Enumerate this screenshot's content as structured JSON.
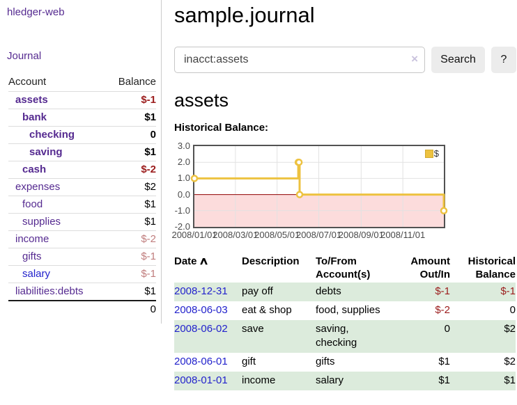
{
  "app": {
    "title": "hledger-web"
  },
  "sidebar": {
    "journal_label": "Journal",
    "accounts_table": {
      "headers": {
        "account": "Account",
        "balance": "Balance"
      },
      "rows": [
        {
          "account": "assets",
          "balance": "$-1",
          "depth": 1,
          "bold": true,
          "balance_class": "neg-strong",
          "visited": true
        },
        {
          "account": "bank",
          "balance": "$1",
          "depth": 2,
          "bold": true,
          "balance_class": "",
          "visited": true
        },
        {
          "account": "checking",
          "balance": "0",
          "depth": 3,
          "bold": true,
          "balance_class": "",
          "visited": true
        },
        {
          "account": "saving",
          "balance": "$1",
          "depth": 3,
          "bold": true,
          "balance_class": "",
          "visited": true
        },
        {
          "account": "cash",
          "balance": "$-2",
          "depth": 2,
          "bold": true,
          "balance_class": "neg-strong",
          "visited": true
        },
        {
          "account": "expenses",
          "balance": "$2",
          "depth": 1,
          "bold": false,
          "balance_class": "",
          "visited": true
        },
        {
          "account": "food",
          "balance": "$1",
          "depth": 2,
          "bold": false,
          "balance_class": "",
          "visited": true
        },
        {
          "account": "supplies",
          "balance": "$1",
          "depth": 2,
          "bold": false,
          "balance_class": "",
          "visited": true
        },
        {
          "account": "income",
          "balance": "$-2",
          "depth": 1,
          "bold": false,
          "balance_class": "neg-soft",
          "visited": true
        },
        {
          "account": "gifts",
          "balance": "$-1",
          "depth": 2,
          "bold": false,
          "balance_class": "neg-soft",
          "visited": true
        },
        {
          "account": "salary",
          "balance": "$-1",
          "depth": 2,
          "bold": false,
          "balance_class": "neg-soft",
          "visited": false
        },
        {
          "account": "liabilities:debts",
          "balance": "$1",
          "depth": 1,
          "bold": false,
          "balance_class": "",
          "visited": true
        }
      ],
      "total": "0"
    }
  },
  "main": {
    "title": "sample.journal",
    "search": {
      "value": "inacct:assets",
      "clear_icon": "×",
      "button_label": "Search",
      "help_label": "?"
    },
    "account_heading": "assets",
    "chart_label": "Historical Balance:",
    "register_table": {
      "headers": [
        {
          "label": "Date",
          "sort": "∧",
          "align": "left"
        },
        {
          "label": "Description",
          "align": "left"
        },
        {
          "label": "To/From Account(s)",
          "align": "left"
        },
        {
          "label": "Amount Out/In",
          "align": "right"
        },
        {
          "label": "Historical Balance",
          "align": "right"
        }
      ],
      "rows": [
        {
          "date": "2008-12-31",
          "description": "pay off",
          "accounts": "debts",
          "amount": "$-1",
          "amount_class": "neg",
          "balance": "$-1",
          "balance_class": "neg"
        },
        {
          "date": "2008-06-03",
          "description": "eat & shop",
          "accounts": "food, supplies",
          "amount": "$-2",
          "amount_class": "neg",
          "balance": "0",
          "balance_class": ""
        },
        {
          "date": "2008-06-02",
          "description": "save",
          "accounts": "saving, checking",
          "amount": "0",
          "amount_class": "",
          "balance": "$2",
          "balance_class": ""
        },
        {
          "date": "2008-06-01",
          "description": "gift",
          "accounts": "gifts",
          "amount": "$1",
          "amount_class": "",
          "balance": "$2",
          "balance_class": ""
        },
        {
          "date": "2008-01-01",
          "description": "income",
          "accounts": "salary",
          "amount": "$1",
          "amount_class": "",
          "balance": "$1",
          "balance_class": ""
        }
      ]
    }
  },
  "chart_data": {
    "type": "line",
    "style": "step-after",
    "title": "Historical Balance:",
    "series": [
      {
        "name": "$",
        "color": "#edc240",
        "points": [
          {
            "date": "2008-01-01",
            "value": 1
          },
          {
            "date": "2008-06-01",
            "value": 2
          },
          {
            "date": "2008-06-02",
            "value": 2
          },
          {
            "date": "2008-06-03",
            "value": 0
          },
          {
            "date": "2008-12-31",
            "value": -1
          }
        ]
      }
    ],
    "x_axis_range": [
      "2008-01-01",
      "2008-12-31"
    ],
    "ylim": [
      -2,
      3
    ],
    "y_ticks": [
      {
        "label": "3.0",
        "value": 3
      },
      {
        "label": "2.0",
        "value": 2
      },
      {
        "label": "1.0",
        "value": 1
      },
      {
        "label": "0.0",
        "value": 0
      },
      {
        "label": "-1.0",
        "value": -1
      },
      {
        "label": "-2.0",
        "value": -2
      }
    ],
    "x_ticks": [
      {
        "label": "2008/01/01",
        "date": "2008-01-01"
      },
      {
        "label": "2008/03/01",
        "date": "2008-03-01"
      },
      {
        "label": "2008/05/01",
        "date": "2008-05-01"
      },
      {
        "label": "2008/07/01",
        "date": "2008-07-01"
      },
      {
        "label": "2008/09/01",
        "date": "2008-09-01"
      },
      {
        "label": "2008/11/01",
        "date": "2008-11-01"
      }
    ],
    "grid": true,
    "legend_position": "top-right",
    "negative_region_color": "#fcdcdc",
    "zero_line_color": "#8f0000",
    "colors": {
      "series_gold": "#edc240",
      "grid_border": "#525252",
      "gridline": "#e2e2e2",
      "tick_text": "#4a4a4a"
    }
  },
  "colors": {
    "link_purple": "#552a90",
    "link_blue": "#2222cc",
    "negative_strong": "#9b1c1c",
    "negative_soft": "#c07d7d",
    "row_stripe_green": "#dcebdc",
    "button_bg": "#ececec"
  }
}
